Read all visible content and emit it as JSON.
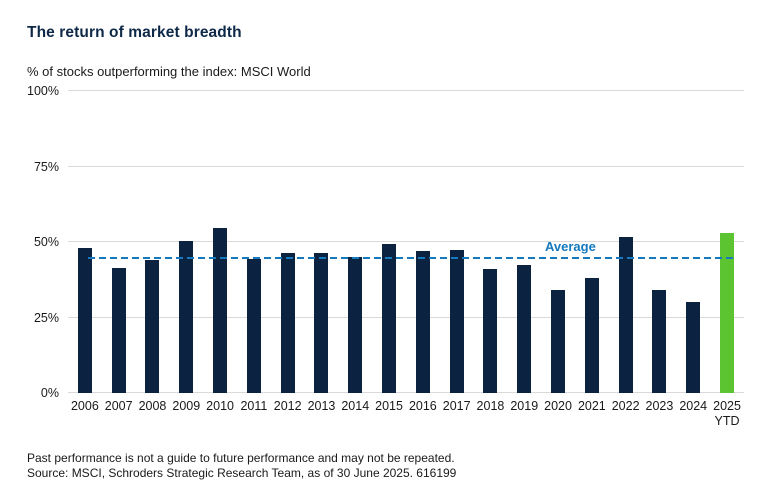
{
  "title": "The return of market breadth",
  "subtitle": "% of stocks outperforming the index: MSCI World",
  "footer": {
    "line1": "Past performance is not a guide to future performance and may not be repeated.",
    "line2": "Source: MSCI, Schroders Strategic Research Team, as of 30 June 2025. 616199"
  },
  "colors": {
    "title_navy": "#0e2848",
    "bar_navy": "#0b2240",
    "bar_green": "#5cc431",
    "average_blue": "#1579be",
    "gridline_gray": "#d9d9d9"
  },
  "chart_data": {
    "type": "bar",
    "title": "The return of market breadth",
    "subtitle": "% of stocks outperforming the index: MSCI World",
    "categories": [
      "2006",
      "2007",
      "2008",
      "2009",
      "2010",
      "2011",
      "2012",
      "2013",
      "2014",
      "2015",
      "2016",
      "2017",
      "2018",
      "2019",
      "2020",
      "2021",
      "2022",
      "2023",
      "2024",
      "2025 YTD"
    ],
    "values": [
      48,
      41.5,
      44,
      50.5,
      54.5,
      44.5,
      46.5,
      46.5,
      45,
      49.5,
      47,
      47.5,
      41,
      42.5,
      34,
      38,
      51.5,
      34,
      30,
      53
    ],
    "highlight_index": 19,
    "average_value": 44.3,
    "average_label": "Average",
    "ylim": [
      0,
      100
    ],
    "ytick_labels": [
      "0%",
      "25%",
      "50%",
      "75%",
      "100%"
    ],
    "grid": "horizontal",
    "legend_position": "none"
  }
}
